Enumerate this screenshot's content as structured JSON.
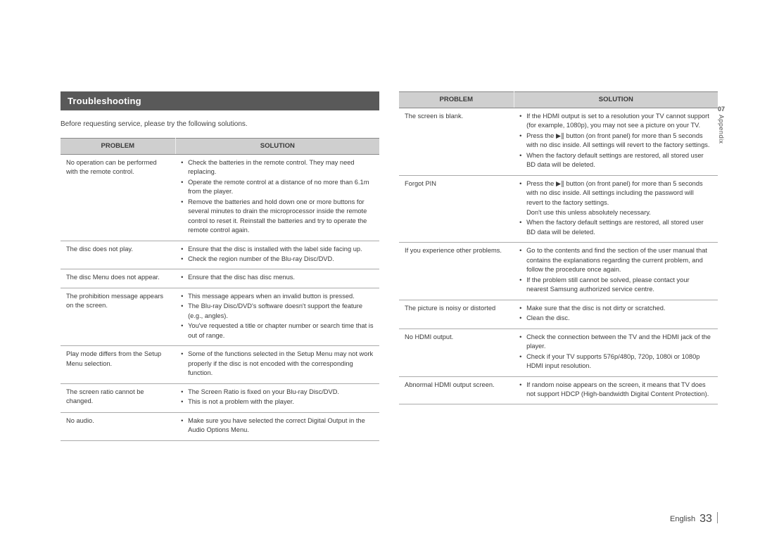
{
  "sideTab": {
    "num": "07",
    "label": "Appendix"
  },
  "footer": {
    "lang": "English",
    "page": "33"
  },
  "left": {
    "title": "Troubleshooting",
    "intro": "Before requesting service, please try the following solutions.",
    "headers": {
      "problem": "PROBLEM",
      "solution": "SOLUTION"
    },
    "rows": [
      {
        "problem": "No operation can be performed with the remote control.",
        "solutions": [
          "Check the batteries in the remote control. They may need replacing.",
          "Operate the remote control at a distance of no more than 6.1m from the player.",
          "Remove the batteries and hold down one or more buttons for several minutes to drain the microprocessor inside the remote control to reset it. Reinstall the batteries and try to operate the remote control again."
        ]
      },
      {
        "problem": "The disc does not play.",
        "solutions": [
          "Ensure that the disc is installed with the label side facing up.",
          "Check the region number of the Blu-ray Disc/DVD."
        ]
      },
      {
        "problem": "The disc Menu does not appear.",
        "solutions": [
          "Ensure that the disc has disc menus."
        ]
      },
      {
        "problem": "The prohibition message appears on the screen.",
        "solutions": [
          "This message appears when an invalid button is pressed.",
          "The Blu-ray Disc/DVD's software doesn't support the feature (e.g., angles).",
          "You've requested a title or chapter number or search time that is out of range."
        ]
      },
      {
        "problem": "Play mode differs from the Setup Menu selection.",
        "solutions": [
          "Some of the functions selected in the Setup Menu may not work properly if the disc is not encoded with the corresponding function."
        ]
      },
      {
        "problem": "The screen ratio cannot be changed.",
        "solutions": [
          "The Screen Ratio is fixed on your Blu-ray Disc/DVD.",
          "This is not a problem with the player."
        ]
      },
      {
        "problem": "No audio.",
        "solutions": [
          "Make sure you have selected the correct Digital Output in the Audio Options Menu."
        ]
      }
    ]
  },
  "right": {
    "headers": {
      "problem": "PROBLEM",
      "solution": "SOLUTION"
    },
    "rows": [
      {
        "problem": "The screen is blank.",
        "solutions": [
          "If the HDMI output is set to a resolution your TV cannot support (for example, 1080p), you may not see a picture on your TV.",
          {
            "prefix": "Press the ",
            "iconText": "▶∥",
            "suffix": " button (on front panel) for more than 5 seconds with no disc inside. All settings will revert to the factory settings."
          },
          "When the factory default settings are restored, all stored user BD data will be deleted."
        ]
      },
      {
        "problem": "Forgot PIN",
        "solutions": [
          {
            "prefix": "Press the ",
            "iconText": "▶∥",
            "suffix": " button (on front panel) for more than 5 seconds with no disc inside. All settings including the password will revert to the factory settings.",
            "note": "Don't use this unless absolutely necessary."
          },
          "When the factory default settings are restored, all stored user BD data will be deleted."
        ]
      },
      {
        "problem": "If you experience other problems.",
        "solutions": [
          "Go to the contents and find the section of the user manual that contains the explanations regarding the current problem, and follow the procedure once again.",
          "If the problem still cannot be solved, please contact your nearest Samsung authorized service centre."
        ]
      },
      {
        "problem": "The picture is noisy or distorted",
        "solutions": [
          "Make sure that the disc is not dirty or scratched.",
          "Clean the disc."
        ]
      },
      {
        "problem": "No HDMI output.",
        "solutions": [
          "Check the connection between the TV and the HDMI jack of the player.",
          "Check if your TV supports 576p/480p, 720p, 1080i or 1080p HDMI input resolution."
        ]
      },
      {
        "problem": "Abnormal HDMI output screen.",
        "solutions": [
          "If random noise appears on the screen, it means that TV does not support HDCP (High-bandwidth Digital Content Protection)."
        ]
      }
    ]
  }
}
